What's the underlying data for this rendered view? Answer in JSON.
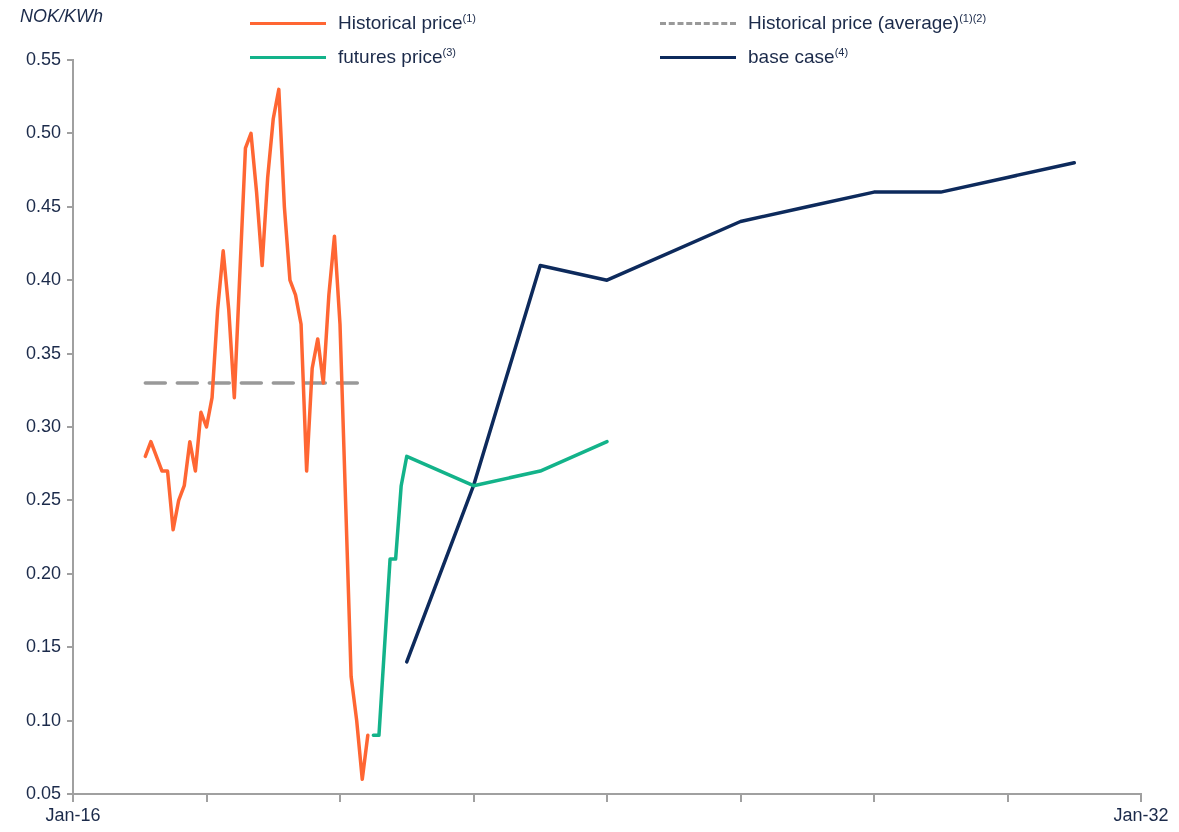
{
  "chart_data": {
    "type": "line",
    "ylabel": "NOK/KWh",
    "legend": "top",
    "xlim": [
      "2016-01",
      "2032-01"
    ],
    "xticks": [
      {
        "value": "2016-01",
        "label": "Jan-16"
      },
      {
        "value": "2018-01",
        "label": null
      },
      {
        "value": "2020-01",
        "label": null
      },
      {
        "value": "2022-01",
        "label": null
      },
      {
        "value": "2024-01",
        "label": null
      },
      {
        "value": "2026-01",
        "label": null
      },
      {
        "value": "2028-01",
        "label": null
      },
      {
        "value": "2030-01",
        "label": null
      },
      {
        "value": "2032-01",
        "label": "Jan-32"
      }
    ],
    "ylim": [
      0.05,
      0.55
    ],
    "yticks": [
      0.05,
      {
        "value": 0.1,
        "label": "0.10"
      },
      0.15,
      {
        "value": 0.2,
        "label": "0.20"
      },
      0.25,
      {
        "value": 0.3,
        "label": "0.30"
      },
      0.35,
      {
        "value": 0.4,
        "label": "0.40"
      },
      0.45,
      {
        "value": 0.5,
        "label": "0.50"
      },
      0.55
    ],
    "series": [
      {
        "name": "Historical price$^{(1)}$",
        "color": "#ff6633",
        "x": [
          "2017-02",
          "2017-03",
          "2017-05",
          "2017-06",
          "2017-07",
          "2017-08",
          "2017-09",
          "2017-10",
          "2017-11",
          "2017-12",
          "2018-01",
          "2018-02",
          "2018-03",
          "2018-04",
          "2018-05",
          "2018-06",
          "2018-08",
          "2018-09",
          "2018-10",
          "2018-11",
          "2018-12",
          "2019-01",
          "2019-02",
          "2019-03",
          "2019-04",
          "2019-05",
          "2019-06",
          "2019-07",
          "2019-08",
          "2019-09",
          "2019-10",
          "2019-11",
          "2019-12",
          "2020-01",
          "2020-03",
          "2020-04",
          "2020-05",
          "2020-06"
        ],
        "values": [
          0.28,
          0.29,
          0.27,
          0.27,
          0.23,
          0.25,
          0.26,
          0.29,
          0.27,
          0.31,
          0.3,
          0.32,
          0.38,
          0.42,
          0.38,
          0.32,
          0.49,
          0.5,
          0.46,
          0.41,
          0.47,
          0.51,
          0.53,
          0.45,
          0.4,
          0.39,
          0.37,
          0.27,
          0.34,
          0.36,
          0.33,
          0.39,
          0.43,
          0.37,
          0.13,
          0.1,
          0.06,
          0.09
        ]
      },
      {
        "name": "Historical price (average)$^{(1)(2)}$",
        "color": "#999999",
        "line_style": "dashed",
        "x": [
          "2017-02",
          "2020-05"
        ],
        "values": [
          0.33,
          0.33
        ]
      },
      {
        "name": "futures price$^{(3)}$",
        "color": "#13b38a",
        "x": [
          "2020-07",
          "2020-08",
          "2020-10",
          "2020-11",
          "2020-12",
          "2021-01",
          "2022-01",
          "2023-01",
          "2024-01"
        ],
        "values": [
          0.09,
          0.09,
          0.21,
          0.21,
          0.26,
          0.28,
          0.26,
          0.27,
          0.29
        ]
      },
      {
        "name": "base case$^{(4)}$",
        "color": "#0d2a5c",
        "x": [
          "2021-01",
          "2022-01",
          "2023-01",
          "2024-01",
          "2026-01",
          "2027-01",
          "2028-01",
          "2029-01",
          "2030-01",
          "2031-01"
        ],
        "values": [
          0.14,
          0.26,
          0.41,
          0.4,
          0.44,
          0.45,
          0.46,
          0.46,
          0.47,
          0.48
        ]
      }
    ]
  }
}
